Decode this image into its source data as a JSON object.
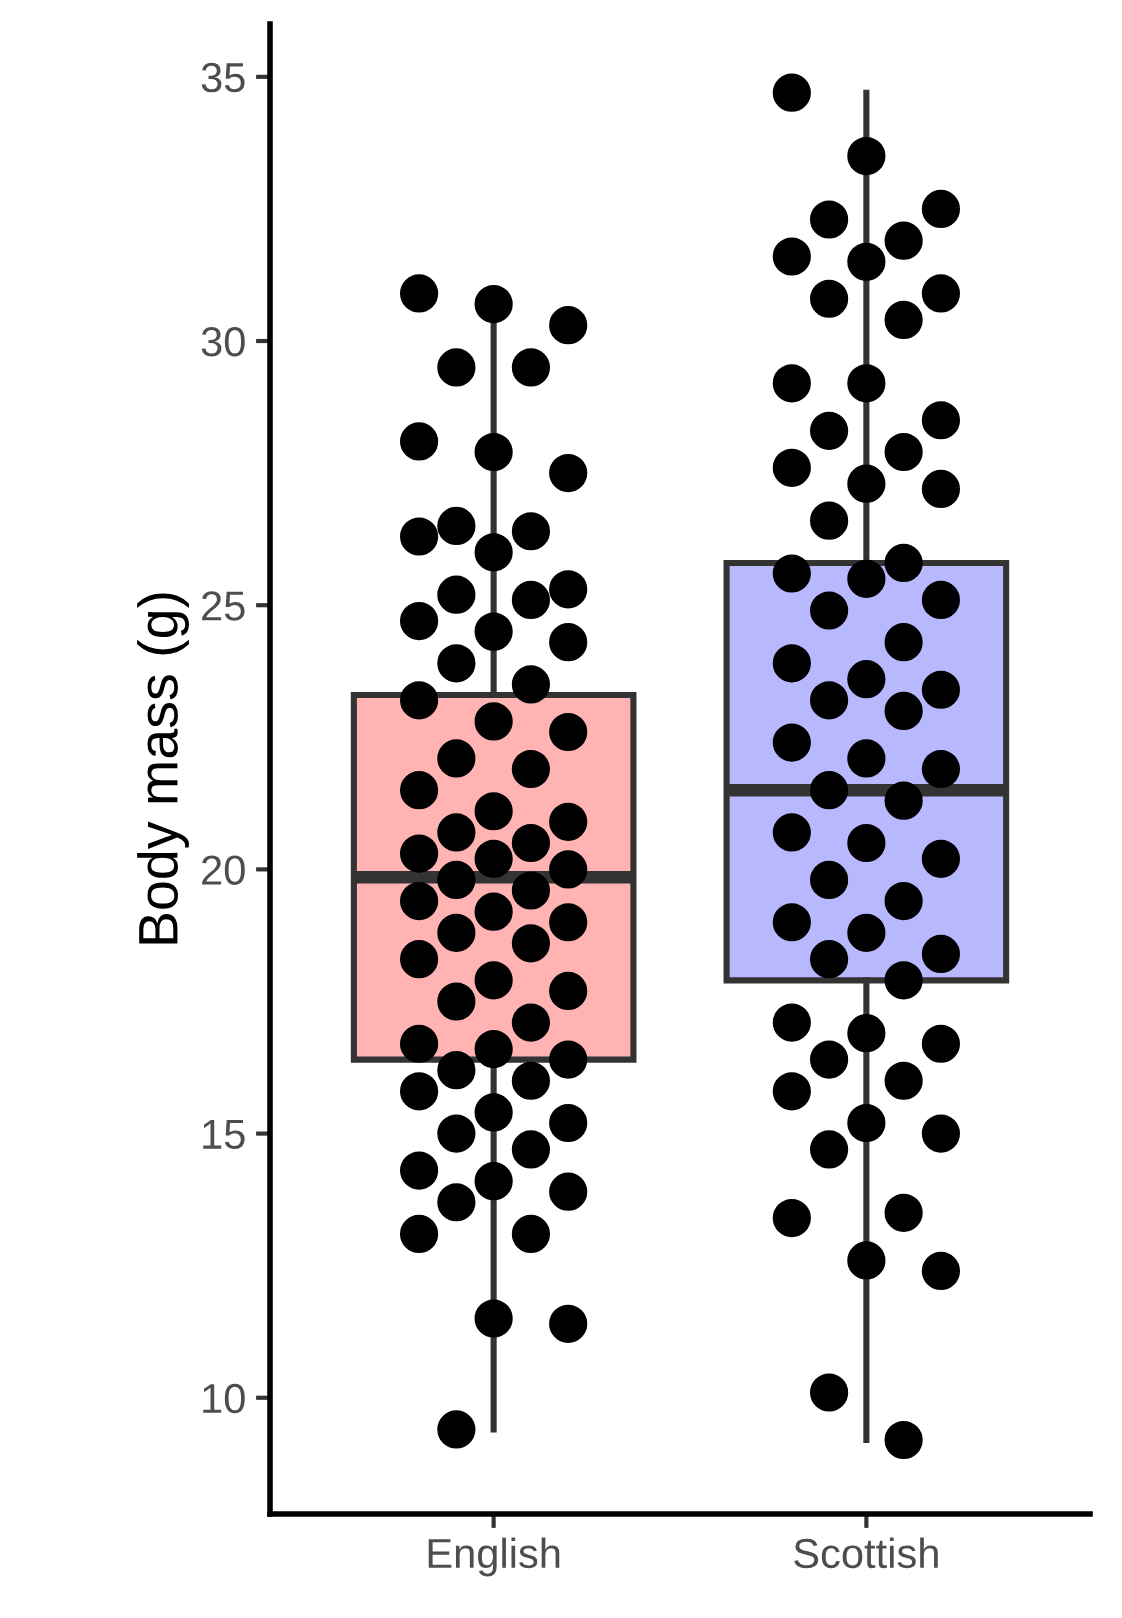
{
  "chart_data": {
    "type": "box",
    "ylabel": "Body mass (g)",
    "categories": [
      "English",
      "Scottish"
    ],
    "ylim": [
      7.8,
      36
    ],
    "yticks": [
      10,
      15,
      20,
      25,
      30,
      35
    ],
    "grid": false,
    "colors": [
      "#ffb3b3",
      "#b8b8ff"
    ],
    "boxes": [
      {
        "low": 9.4,
        "q1": 16.4,
        "median": 19.85,
        "q3": 23.3,
        "high": 30.8
      },
      {
        "low": 9.2,
        "q1": 17.9,
        "median": 21.5,
        "q3": 25.8,
        "high": 34.7
      }
    ],
    "series": [
      {
        "type": "scatter",
        "color": "#000000",
        "marker": "circle",
        "x": [
          "English",
          "English",
          "English",
          "English",
          "English",
          "English",
          "English",
          "English",
          "English",
          "English",
          "English",
          "English",
          "English",
          "English",
          "English",
          "English",
          "English",
          "English",
          "English",
          "English",
          "English",
          "English",
          "English",
          "English",
          "English",
          "English",
          "English",
          "English",
          "English",
          "English",
          "English",
          "English",
          "English",
          "English",
          "English",
          "English",
          "English",
          "English",
          "English",
          "English",
          "English",
          "English",
          "English",
          "English",
          "English",
          "English",
          "English",
          "English",
          "English",
          "English",
          "English",
          "English",
          "English",
          "English",
          "English",
          "English",
          "English",
          "English",
          "English",
          "English",
          "English",
          "English",
          "English",
          "English"
        ],
        "values": [
          30.9,
          30.7,
          30.3,
          29.5,
          29.5,
          28.1,
          27.9,
          27.5,
          26.5,
          26.4,
          26.3,
          26.0,
          25.3,
          25.2,
          25.1,
          24.7,
          24.5,
          24.3,
          23.9,
          23.5,
          23.2,
          22.8,
          22.6,
          22.1,
          21.9,
          21.5,
          21.1,
          20.9,
          20.7,
          20.5,
          20.3,
          20.2,
          20.0,
          19.8,
          19.6,
          19.4,
          19.2,
          19.0,
          18.8,
          18.6,
          18.3,
          17.9,
          17.7,
          17.5,
          17.1,
          16.7,
          16.6,
          16.4,
          16.2,
          16.0,
          15.8,
          15.4,
          15.2,
          15.0,
          14.7,
          14.3,
          14.1,
          13.9,
          13.7,
          13.1,
          13.1,
          11.5,
          11.4,
          9.4
        ]
      },
      {
        "type": "scatter",
        "color": "#000000",
        "marker": "circle",
        "x": [
          "Scottish",
          "Scottish",
          "Scottish",
          "Scottish",
          "Scottish",
          "Scottish",
          "Scottish",
          "Scottish",
          "Scottish",
          "Scottish",
          "Scottish",
          "Scottish",
          "Scottish",
          "Scottish",
          "Scottish",
          "Scottish",
          "Scottish",
          "Scottish",
          "Scottish",
          "Scottish",
          "Scottish",
          "Scottish",
          "Scottish",
          "Scottish",
          "Scottish",
          "Scottish",
          "Scottish",
          "Scottish",
          "Scottish",
          "Scottish",
          "Scottish",
          "Scottish",
          "Scottish",
          "Scottish",
          "Scottish",
          "Scottish",
          "Scottish",
          "Scottish",
          "Scottish",
          "Scottish",
          "Scottish",
          "Scottish",
          "Scottish",
          "Scottish",
          "Scottish",
          "Scottish",
          "Scottish",
          "Scottish",
          "Scottish",
          "Scottish",
          "Scottish",
          "Scottish",
          "Scottish",
          "Scottish",
          "Scottish",
          "Scottish",
          "Scottish",
          "Scottish",
          "Scottish",
          "Scottish"
        ],
        "values": [
          34.7,
          33.5,
          32.5,
          32.3,
          31.9,
          31.6,
          31.5,
          30.9,
          30.8,
          30.4,
          29.2,
          29.2,
          28.5,
          28.3,
          27.9,
          27.6,
          27.3,
          27.2,
          26.6,
          25.8,
          25.6,
          25.5,
          25.1,
          24.9,
          24.3,
          23.9,
          23.6,
          23.4,
          23.2,
          23.0,
          22.4,
          22.1,
          21.9,
          21.5,
          21.3,
          20.7,
          20.5,
          20.2,
          19.8,
          19.4,
          19.0,
          18.8,
          18.4,
          18.3,
          17.9,
          17.1,
          16.9,
          16.7,
          16.4,
          16.0,
          15.8,
          15.2,
          15.0,
          14.7,
          13.5,
          13.4,
          12.6,
          12.4,
          10.1,
          9.2
        ]
      }
    ]
  }
}
